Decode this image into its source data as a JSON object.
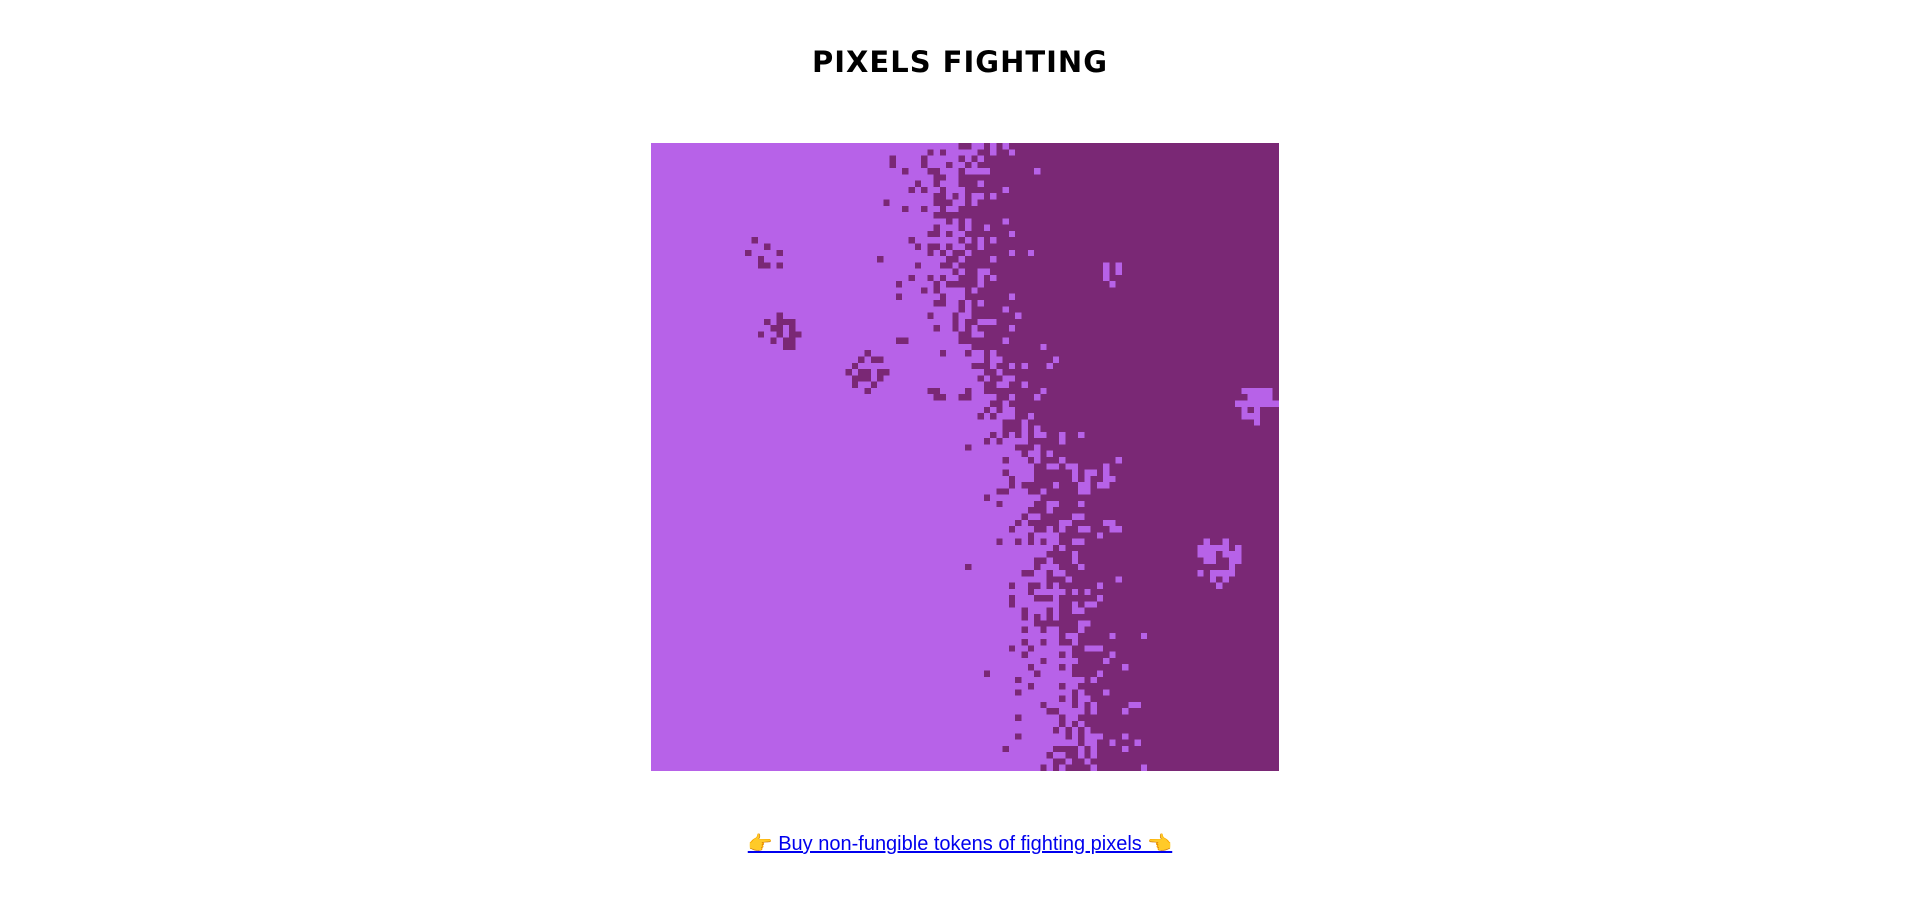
{
  "page": {
    "title": "PIXELS FIGHTING"
  },
  "board": {
    "colors": {
      "left_team": "#b762e8",
      "right_team": "#7a2875"
    },
    "grid_cells": 100
  },
  "footer": {
    "link_text": "👉 Buy non-fungible tokens of fighting pixels 👈"
  }
}
